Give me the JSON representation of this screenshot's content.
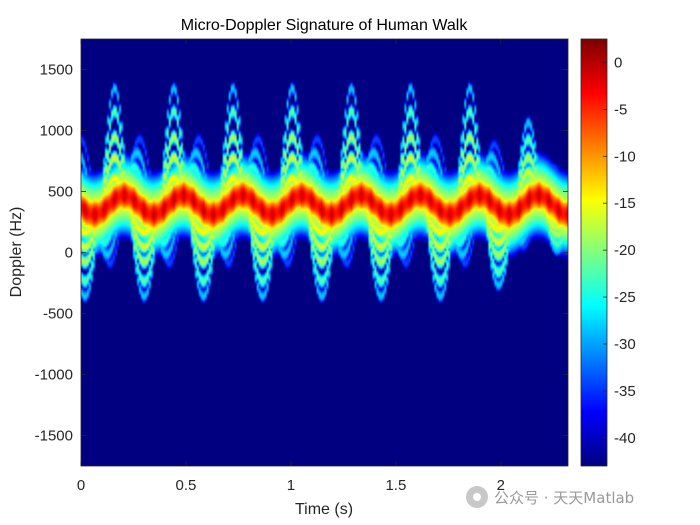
{
  "chart_data": {
    "type": "heatmap",
    "title": "Micro-Doppler Signature of Human Walk",
    "xlabel": "Time (s)",
    "ylabel": "Doppler (Hz)",
    "xlim": [
      0,
      2.32
    ],
    "ylim": [
      -1750,
      1750
    ],
    "xticks": [
      0,
      0.5,
      1,
      1.5,
      2
    ],
    "xtick_labels": [
      "0",
      "0.5",
      "1",
      "1.5",
      "2"
    ],
    "yticks": [
      1500,
      1000,
      500,
      0,
      -500,
      -1000,
      -1500
    ],
    "ytick_labels": [
      "1500",
      "1000",
      "500",
      "0",
      "-500",
      "-1000",
      "-1500"
    ],
    "colormap": "jet",
    "clim": [
      -43,
      2.5
    ],
    "colorbar_ticks": [
      0,
      -5,
      -10,
      -15,
      -20,
      -25,
      -30,
      -35,
      -40
    ],
    "colorbar_tick_labels": [
      "0",
      "-5",
      "-10",
      "-15",
      "-20",
      "-25",
      "-30",
      "-35",
      "-40"
    ],
    "background_level_db": -43,
    "gait": {
      "stride_period_s": 0.282,
      "first_peak_s": 0.16,
      "torso_center_hz": 390,
      "torso_swing_hz": 80,
      "limb_components": [
        {
          "amplitude_hz": 930,
          "offset_hz": 420,
          "level_db": -28,
          "width_hz": 38
        },
        {
          "amplitude_hz": 760,
          "offset_hz": 400,
          "level_db": -22,
          "width_hz": 38
        },
        {
          "amplitude_hz": 560,
          "offset_hz": 390,
          "level_db": -18,
          "width_hz": 36
        },
        {
          "amplitude_hz": 400,
          "offset_hz": 380,
          "level_db": -16,
          "width_hz": 34
        },
        {
          "amplitude_hz": 240,
          "offset_hz": 370,
          "level_db": -14,
          "width_hz": 34
        }
      ],
      "torso_level_db": 0,
      "end_fade": {
        "start_s": 1.9,
        "min_scale": 0.45
      }
    }
  },
  "watermark": {
    "text": "公众号 · 天天Matlab",
    "icon": "wechat-logo-icon"
  }
}
